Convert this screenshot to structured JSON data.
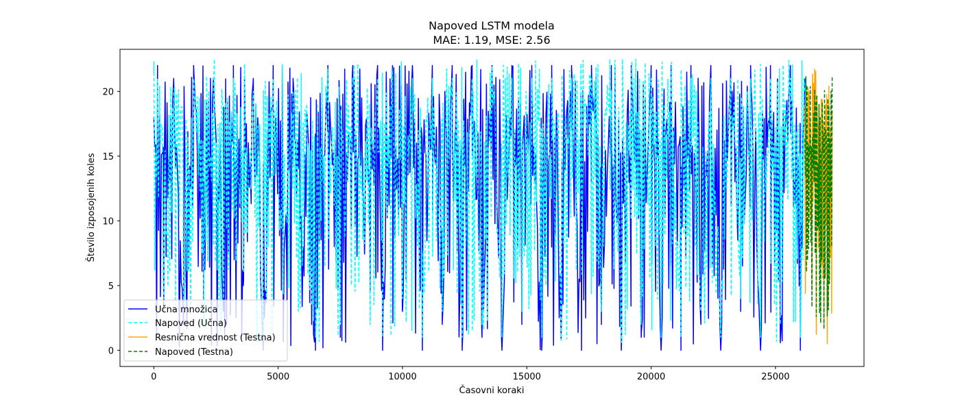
{
  "chart_data": {
    "type": "line",
    "title": "Napoved LSTM modela",
    "subtitle": "MAE: 1.19, MSE: 2.56",
    "xlabel": "Časovni koraki",
    "ylabel": "Število izposojenih koles",
    "xlim": [
      -1360,
      28560
    ],
    "ylim": [
      -1.25,
      23.25
    ],
    "x_ticks": [
      0,
      5000,
      10000,
      15000,
      20000,
      25000
    ],
    "y_ticks": [
      0,
      5,
      10,
      15,
      20
    ],
    "x_tick_labels": [
      "0",
      "5000",
      "10000",
      "15000",
      "20000",
      "25000"
    ],
    "y_tick_labels": [
      "0",
      "5",
      "10",
      "15",
      "20"
    ],
    "grid": false,
    "legend_position": "lower-left",
    "series": [
      {
        "name": "Učna množica",
        "color": "#0000ff",
        "style": "solid",
        "x_range": [
          0,
          26180
        ],
        "min": 0,
        "max": 22,
        "approx_points": [
          [
            0,
            18
          ],
          [
            150,
            22
          ],
          [
            400,
            3
          ],
          [
            800,
            21
          ],
          [
            1200,
            2
          ],
          [
            1600,
            22
          ],
          [
            2000,
            4
          ],
          [
            2400,
            21
          ],
          [
            2800,
            3
          ],
          [
            3200,
            22
          ],
          [
            3600,
            5
          ],
          [
            4000,
            21
          ],
          [
            4400,
            0
          ],
          [
            4800,
            22
          ],
          [
            5200,
            6
          ],
          [
            5600,
            21
          ],
          [
            6000,
            8
          ],
          [
            6500,
            0
          ],
          [
            7000,
            22
          ],
          [
            7500,
            1
          ],
          [
            8000,
            22
          ],
          [
            8500,
            10
          ],
          [
            9000,
            22
          ],
          [
            9200,
            0
          ],
          [
            9600,
            22
          ],
          [
            10000,
            3
          ],
          [
            10400,
            22
          ],
          [
            10800,
            0
          ],
          [
            11200,
            22
          ],
          [
            11600,
            2
          ],
          [
            12000,
            22
          ],
          [
            12400,
            0
          ],
          [
            12800,
            22
          ],
          [
            13200,
            1
          ],
          [
            13600,
            22
          ],
          [
            14000,
            0
          ],
          [
            14400,
            22
          ],
          [
            14800,
            2
          ],
          [
            15200,
            22
          ],
          [
            15600,
            0
          ],
          [
            16000,
            22
          ],
          [
            16400,
            3
          ],
          [
            16800,
            22
          ],
          [
            17200,
            0
          ],
          [
            17600,
            22
          ],
          [
            18000,
            2
          ],
          [
            18400,
            22
          ],
          [
            18800,
            0
          ],
          [
            19200,
            22
          ],
          [
            19600,
            1
          ],
          [
            20000,
            22
          ],
          [
            20400,
            0
          ],
          [
            20800,
            22
          ],
          [
            21200,
            0
          ],
          [
            21600,
            22
          ],
          [
            22000,
            2
          ],
          [
            22400,
            22
          ],
          [
            22800,
            0
          ],
          [
            23200,
            22
          ],
          [
            23600,
            3
          ],
          [
            24000,
            22
          ],
          [
            24400,
            0
          ],
          [
            24800,
            22
          ],
          [
            25200,
            1
          ],
          [
            25600,
            22
          ],
          [
            26000,
            0
          ],
          [
            26180,
            21
          ]
        ]
      },
      {
        "name": "Napoved (Učna)",
        "color": "#00ffff",
        "style": "dashed",
        "x_range": [
          0,
          26180
        ],
        "min": 0.5,
        "max": 22.5,
        "approx_points": [
          [
            0,
            22.3
          ],
          [
            150,
            21
          ],
          [
            400,
            4
          ],
          [
            800,
            20
          ],
          [
            1200,
            3
          ],
          [
            1600,
            21
          ],
          [
            2000,
            5
          ],
          [
            2400,
            20
          ],
          [
            2800,
            4
          ],
          [
            3200,
            21
          ],
          [
            3600,
            6
          ],
          [
            4000,
            20
          ],
          [
            4400,
            1
          ],
          [
            4800,
            21
          ],
          [
            5200,
            7
          ],
          [
            5600,
            20
          ],
          [
            6000,
            9
          ],
          [
            6500,
            1
          ],
          [
            7000,
            21
          ],
          [
            7500,
            2
          ],
          [
            8000,
            21
          ],
          [
            8500,
            11
          ],
          [
            9000,
            21
          ],
          [
            9200,
            1
          ],
          [
            9600,
            21
          ],
          [
            10000,
            4
          ],
          [
            10400,
            21
          ],
          [
            10800,
            1
          ],
          [
            11200,
            21
          ],
          [
            11600,
            3
          ],
          [
            12000,
            21
          ],
          [
            12400,
            1
          ],
          [
            12800,
            21
          ],
          [
            13200,
            2
          ],
          [
            13600,
            21
          ],
          [
            14000,
            1
          ],
          [
            14400,
            21
          ],
          [
            14800,
            3
          ],
          [
            15200,
            21
          ],
          [
            15600,
            1
          ],
          [
            16000,
            21
          ],
          [
            16400,
            4
          ],
          [
            16800,
            21
          ],
          [
            17260,
            22.4
          ],
          [
            17600,
            21
          ],
          [
            18000,
            3
          ],
          [
            18340,
            22.5
          ],
          [
            18800,
            1
          ],
          [
            19200,
            21
          ],
          [
            19600,
            2
          ],
          [
            20000,
            21
          ],
          [
            20400,
            1
          ],
          [
            20800,
            21
          ],
          [
            21200,
            1
          ],
          [
            21600,
            21
          ],
          [
            22000,
            3
          ],
          [
            22400,
            21
          ],
          [
            22800,
            1
          ],
          [
            23200,
            21
          ],
          [
            23600,
            4
          ],
          [
            24000,
            21
          ],
          [
            24400,
            1
          ],
          [
            24800,
            21
          ],
          [
            25200,
            2
          ],
          [
            25600,
            21
          ],
          [
            26000,
            1
          ],
          [
            26180,
            20
          ]
        ]
      },
      {
        "name": "Resnična vrednost (Testna)",
        "color": "#ffa500",
        "style": "solid",
        "x_range": [
          26180,
          27280
        ],
        "min": 0,
        "max": 22
      },
      {
        "name": "Napoved (Testna)",
        "color": "#008000",
        "style": "dashed",
        "x_range": [
          26180,
          27280
        ],
        "min": 0.5,
        "max": 21.3
      }
    ],
    "legend_entries": [
      {
        "label": "Učna množica",
        "color": "#0000ff",
        "style": "solid"
      },
      {
        "label": "Napoved (Učna)",
        "color": "#00ffff",
        "style": "dashed"
      },
      {
        "label": "Resnična vrednost (Testna)",
        "color": "#ffa500",
        "style": "solid"
      },
      {
        "label": "Napoved (Testna)",
        "color": "#008000",
        "style": "dashed"
      }
    ]
  }
}
